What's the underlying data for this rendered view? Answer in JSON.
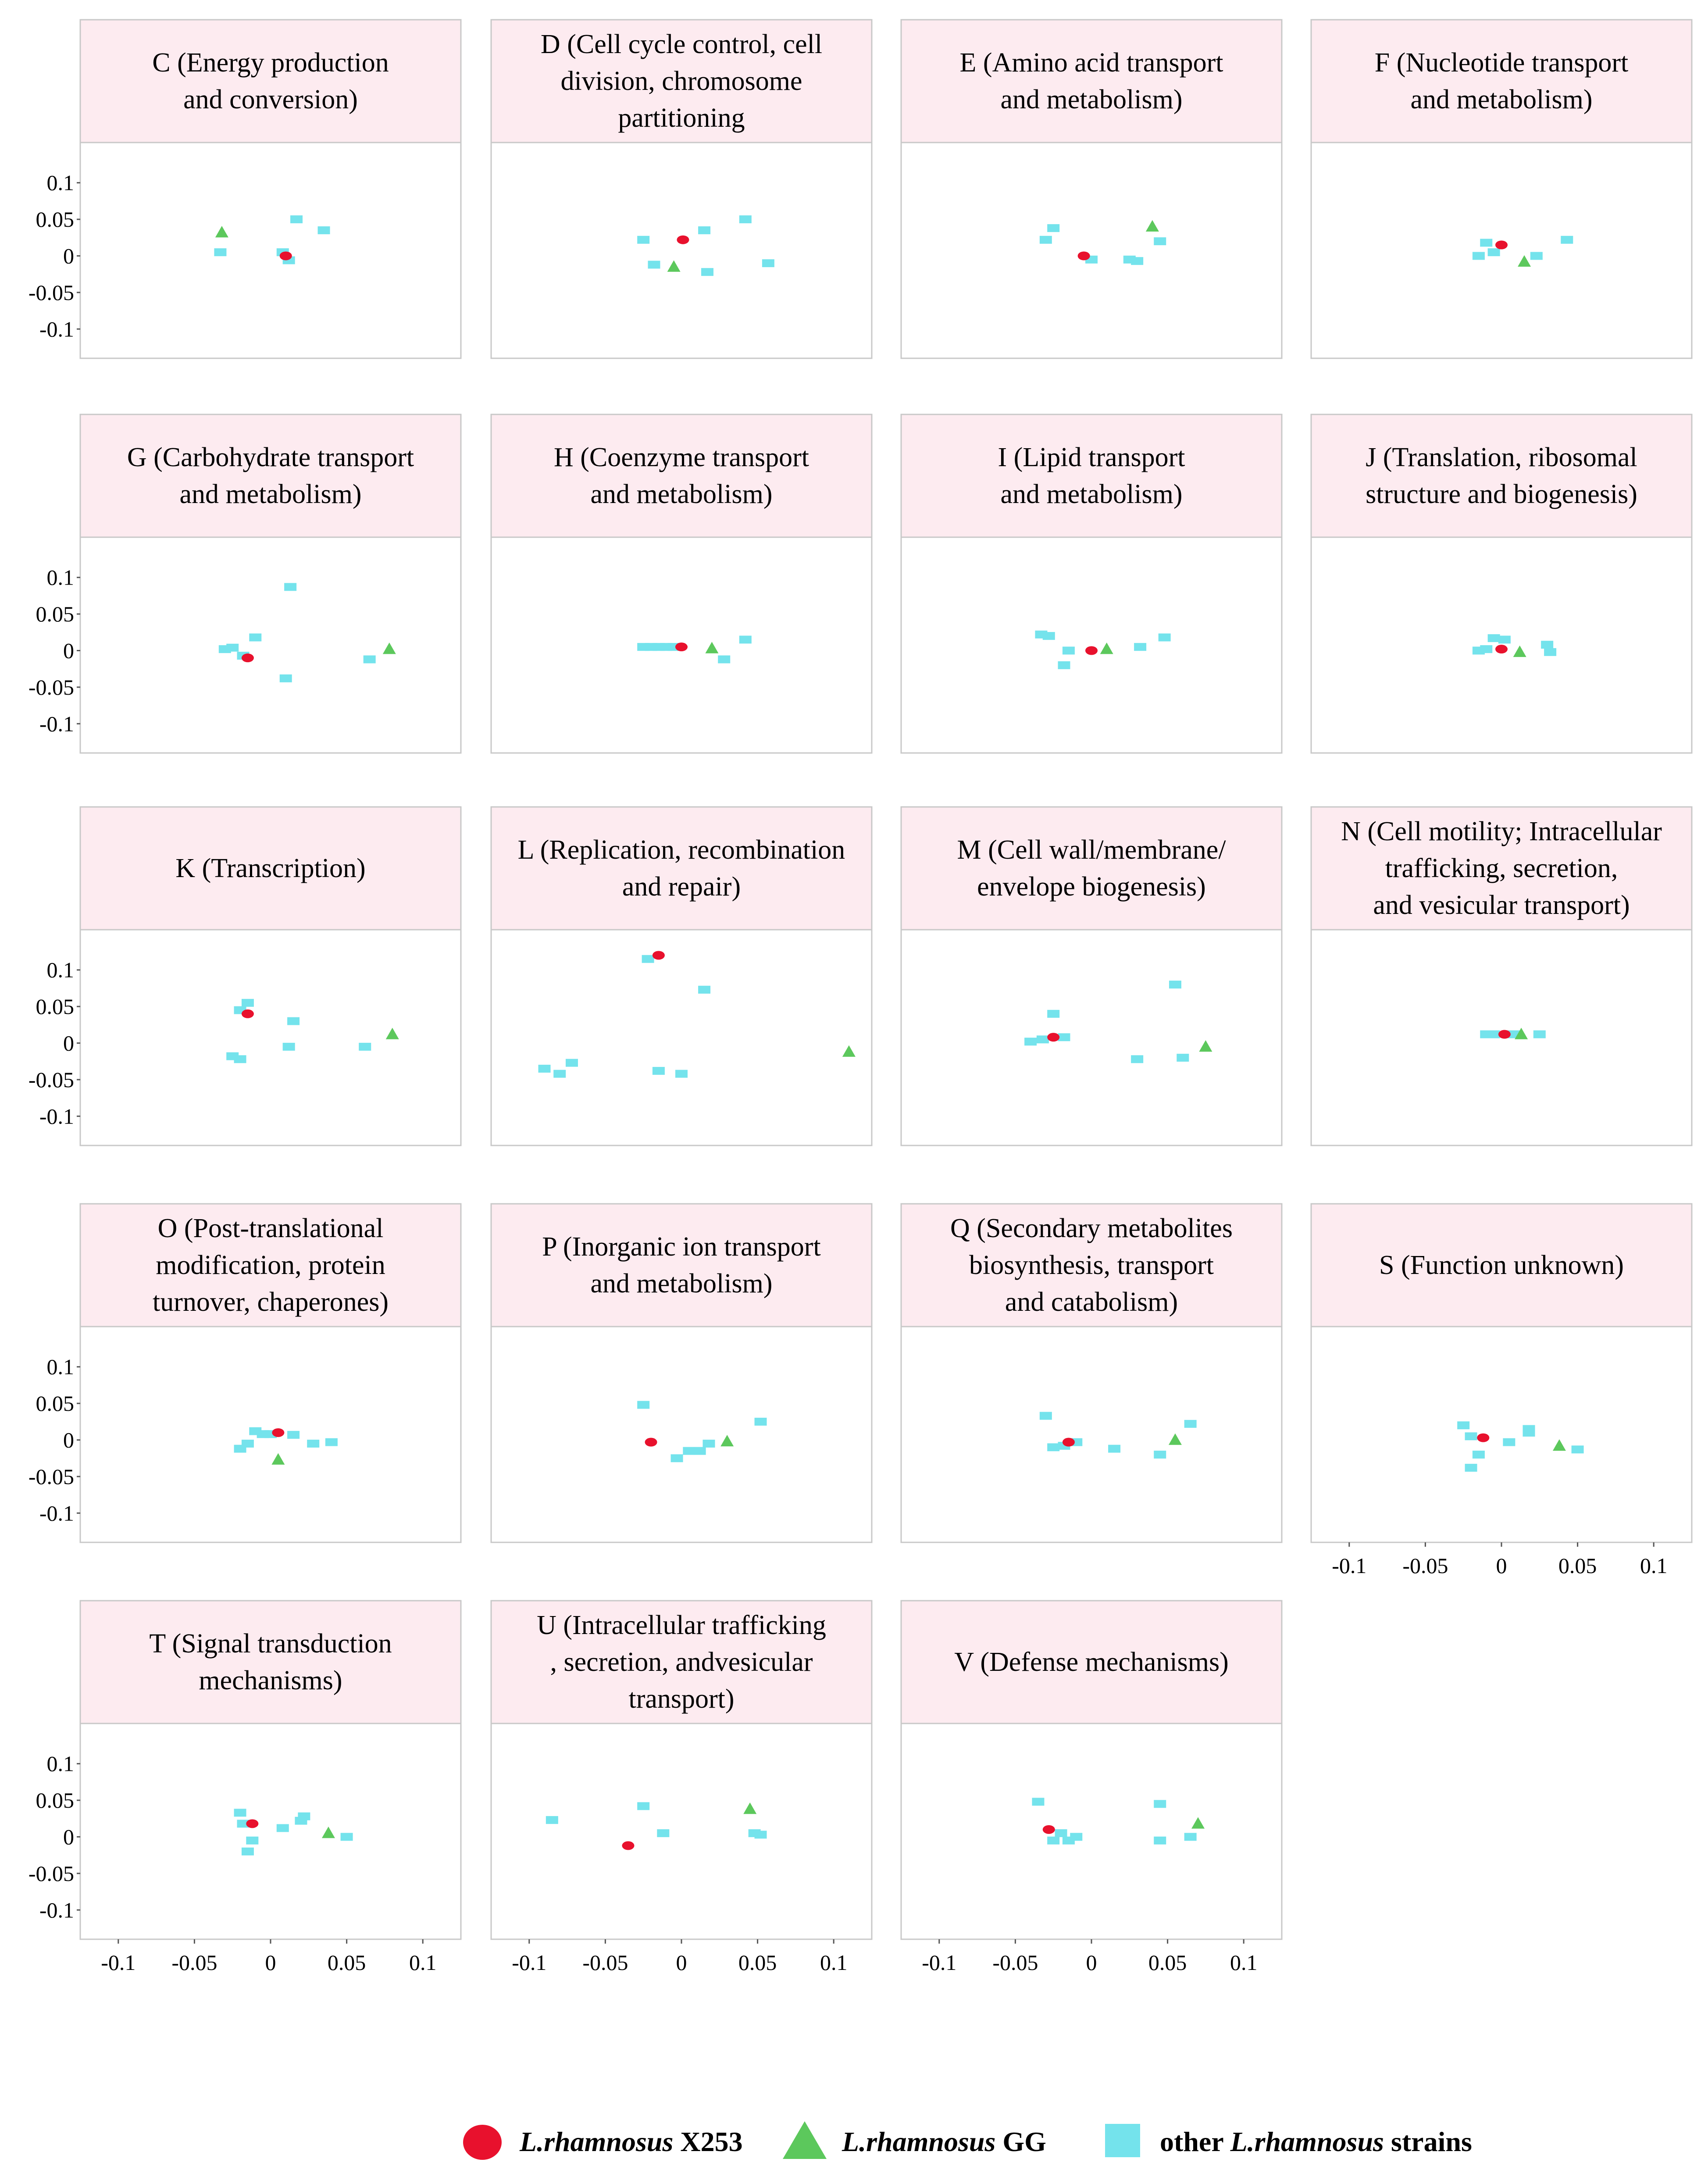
{
  "chart_data": {
    "type": "scatter",
    "title": "",
    "xlabel": "",
    "ylabel": "",
    "xlim": [
      -0.125,
      0.125
    ],
    "ylim": [
      -0.14,
      0.155
    ],
    "x_ticks": [
      "-0.1",
      "-0.05",
      "0",
      "0.05",
      "0.1"
    ],
    "y_ticks": [
      "0.1",
      "0.05",
      "0",
      "-0.05",
      "-0.1"
    ],
    "grid": false,
    "legend_position": "bottom",
    "legend": [
      {
        "key": "x253",
        "marker": "ellipse",
        "color": "#e8112d",
        "italic": "L.rhamnosus",
        "plain": " X253"
      },
      {
        "key": "gg",
        "marker": "triangle",
        "color": "#5cc85c",
        "italic": "L.rhamnosus",
        "plain": " GG"
      },
      {
        "key": "other",
        "marker": "square",
        "color": "#74e3ec",
        "prefix": "other ",
        "italic": "L.rhamnosus",
        "plain": " strains"
      }
    ],
    "panels": [
      {
        "id": "C",
        "title_lines": [
          "C (Energy production",
          "and conversion)"
        ],
        "x253": [
          [
            0.01,
            0.0
          ]
        ],
        "gg": [
          [
            -0.032,
            0.032
          ]
        ],
        "other": [
          [
            -0.033,
            0.005
          ],
          [
            0.008,
            0.005
          ],
          [
            0.017,
            0.05
          ],
          [
            0.035,
            0.035
          ],
          [
            0.012,
            -0.006
          ]
        ]
      },
      {
        "id": "D",
        "title_lines": [
          "D (Cell cycle control, cell",
          "division, chromosome",
          "partitioning"
        ],
        "x253": [
          [
            0.001,
            0.022
          ]
        ],
        "gg": [
          [
            -0.005,
            -0.015
          ]
        ],
        "other": [
          [
            -0.025,
            0.022
          ],
          [
            -0.018,
            -0.012
          ],
          [
            0.015,
            0.035
          ],
          [
            0.017,
            -0.022
          ],
          [
            0.042,
            0.05
          ],
          [
            0.057,
            -0.01
          ]
        ]
      },
      {
        "id": "E",
        "title_lines": [
          "E (Amino acid transport",
          "and metabolism)"
        ],
        "x253": [
          [
            -0.005,
            0.0
          ]
        ],
        "gg": [
          [
            0.04,
            0.04
          ]
        ],
        "other": [
          [
            -0.03,
            0.022
          ],
          [
            -0.025,
            0.038
          ],
          [
            0.0,
            -0.005
          ],
          [
            0.025,
            -0.005
          ],
          [
            0.03,
            -0.007
          ],
          [
            0.045,
            0.02
          ]
        ]
      },
      {
        "id": "F",
        "title_lines": [
          "F (Nucleotide transport",
          "and metabolism)"
        ],
        "x253": [
          [
            0.0,
            0.015
          ]
        ],
        "gg": [
          [
            0.015,
            -0.008
          ]
        ],
        "other": [
          [
            -0.015,
            0.0
          ],
          [
            -0.01,
            0.018
          ],
          [
            -0.005,
            0.005
          ],
          [
            0.023,
            0.0
          ],
          [
            0.043,
            0.022
          ]
        ]
      },
      {
        "id": "G",
        "title_lines": [
          "G (Carbohydrate transport",
          "and metabolism)"
        ],
        "x253": [
          [
            -0.015,
            -0.01
          ]
        ],
        "gg": [
          [
            0.078,
            0.002
          ]
        ],
        "other": [
          [
            -0.03,
            0.002
          ],
          [
            -0.025,
            0.004
          ],
          [
            -0.018,
            -0.007
          ],
          [
            -0.01,
            0.018
          ],
          [
            0.013,
            0.087
          ],
          [
            0.01,
            -0.038
          ],
          [
            0.065,
            -0.012
          ]
        ]
      },
      {
        "id": "H",
        "title_lines": [
          "H (Coenzyme transport",
          "and metabolism)"
        ],
        "x253": [
          [
            0.0,
            0.005
          ]
        ],
        "gg": [
          [
            0.02,
            0.003
          ]
        ],
        "other": [
          [
            -0.025,
            0.005
          ],
          [
            -0.02,
            0.005
          ],
          [
            -0.015,
            0.005
          ],
          [
            -0.01,
            0.005
          ],
          [
            -0.005,
            0.005
          ],
          [
            0.028,
            -0.012
          ],
          [
            0.042,
            0.015
          ]
        ]
      },
      {
        "id": "I",
        "title_lines": [
          "I (Lipid transport",
          "and metabolism)"
        ],
        "x253": [
          [
            0.0,
            0.0
          ]
        ],
        "gg": [
          [
            0.01,
            0.002
          ]
        ],
        "other": [
          [
            -0.033,
            0.022
          ],
          [
            -0.028,
            0.02
          ],
          [
            -0.015,
            0.0
          ],
          [
            -0.018,
            -0.02
          ],
          [
            0.032,
            0.005
          ],
          [
            0.048,
            0.018
          ]
        ]
      },
      {
        "id": "J",
        "title_lines": [
          "J (Translation, ribosomal",
          "structure and biogenesis)"
        ],
        "x253": [
          [
            0.0,
            0.002
          ]
        ],
        "gg": [
          [
            0.012,
            -0.002
          ]
        ],
        "other": [
          [
            -0.015,
            0.0
          ],
          [
            -0.01,
            0.002
          ],
          [
            -0.005,
            0.017
          ],
          [
            0.002,
            0.015
          ],
          [
            0.03,
            0.008
          ],
          [
            0.032,
            -0.002
          ]
        ]
      },
      {
        "id": "K",
        "title_lines": [
          "K (Transcription)"
        ],
        "x253": [
          [
            -0.015,
            0.04
          ]
        ],
        "gg": [
          [
            0.08,
            0.012
          ]
        ],
        "other": [
          [
            -0.02,
            0.045
          ],
          [
            -0.015,
            0.055
          ],
          [
            -0.025,
            -0.018
          ],
          [
            -0.02,
            -0.022
          ],
          [
            0.015,
            0.03
          ],
          [
            0.012,
            -0.005
          ],
          [
            0.062,
            -0.005
          ]
        ]
      },
      {
        "id": "L",
        "title_lines": [
          "L (Replication, recombination",
          "and repair)"
        ],
        "x253": [
          [
            -0.015,
            0.12
          ]
        ],
        "gg": [
          [
            0.11,
            -0.012
          ]
        ],
        "other": [
          [
            -0.022,
            0.115
          ],
          [
            0.015,
            0.073
          ],
          [
            -0.09,
            -0.035
          ],
          [
            -0.08,
            -0.042
          ],
          [
            -0.072,
            -0.027
          ],
          [
            -0.015,
            -0.038
          ],
          [
            0.0,
            -0.042
          ]
        ]
      },
      {
        "id": "M",
        "title_lines": [
          "M (Cell wall/membrane/",
          "envelope biogenesis)"
        ],
        "x253": [
          [
            -0.025,
            0.008
          ]
        ],
        "gg": [
          [
            0.075,
            -0.005
          ]
        ],
        "other": [
          [
            -0.04,
            0.002
          ],
          [
            -0.032,
            0.005
          ],
          [
            -0.025,
            0.04
          ],
          [
            -0.018,
            0.008
          ],
          [
            0.055,
            0.08
          ],
          [
            0.03,
            -0.022
          ],
          [
            0.06,
            -0.02
          ]
        ]
      },
      {
        "id": "N",
        "title_lines": [
          "N (Cell motility; Intracellular",
          "trafficking, secretion,",
          "and vesicular transport)"
        ],
        "x253": [
          [
            0.002,
            0.012
          ]
        ],
        "gg": [
          [
            0.013,
            0.012
          ]
        ],
        "other": [
          [
            -0.01,
            0.012
          ],
          [
            -0.005,
            0.012
          ],
          [
            0.008,
            0.012
          ],
          [
            0.025,
            0.012
          ]
        ]
      },
      {
        "id": "O",
        "title_lines": [
          "O (Post-translational",
          "modification, protein",
          "turnover, chaperones)"
        ],
        "x253": [
          [
            0.005,
            0.01
          ]
        ],
        "gg": [
          [
            0.005,
            -0.027
          ]
        ],
        "other": [
          [
            -0.02,
            -0.012
          ],
          [
            -0.015,
            -0.005
          ],
          [
            -0.01,
            0.012
          ],
          [
            -0.005,
            0.008
          ],
          [
            0.0,
            0.008
          ],
          [
            0.015,
            0.007
          ],
          [
            0.028,
            -0.005
          ],
          [
            0.04,
            -0.003
          ]
        ]
      },
      {
        "id": "P",
        "title_lines": [
          "P (Inorganic ion transport",
          "and metabolism)"
        ],
        "x253": [
          [
            -0.02,
            -0.003
          ]
        ],
        "gg": [
          [
            0.03,
            -0.002
          ]
        ],
        "other": [
          [
            -0.025,
            0.048
          ],
          [
            -0.003,
            -0.025
          ],
          [
            0.005,
            -0.015
          ],
          [
            0.012,
            -0.015
          ],
          [
            0.018,
            -0.005
          ],
          [
            0.052,
            0.025
          ]
        ]
      },
      {
        "id": "Q",
        "title_lines": [
          "Q (Secondary metabolites",
          "biosynthesis, transport",
          "and catabolism)"
        ],
        "x253": [
          [
            -0.015,
            -0.003
          ]
        ],
        "gg": [
          [
            0.055,
            0.0
          ]
        ],
        "other": [
          [
            -0.03,
            0.033
          ],
          [
            -0.025,
            -0.01
          ],
          [
            -0.018,
            -0.008
          ],
          [
            -0.01,
            -0.003
          ],
          [
            0.015,
            -0.012
          ],
          [
            0.045,
            -0.02
          ],
          [
            0.065,
            0.022
          ]
        ]
      },
      {
        "id": "S",
        "title_lines": [
          "S (Function unknown)"
        ],
        "x253": [
          [
            -0.012,
            0.003
          ]
        ],
        "gg": [
          [
            0.038,
            -0.008
          ]
        ],
        "other": [
          [
            -0.025,
            0.02
          ],
          [
            -0.02,
            0.005
          ],
          [
            -0.015,
            -0.02
          ],
          [
            -0.02,
            -0.038
          ],
          [
            0.005,
            -0.003
          ],
          [
            0.018,
            0.01
          ],
          [
            0.018,
            0.015
          ],
          [
            0.05,
            -0.013
          ]
        ]
      },
      {
        "id": "T",
        "title_lines": [
          "T (Signal transduction",
          "mechanisms)"
        ],
        "x253": [
          [
            -0.012,
            0.018
          ]
        ],
        "gg": [
          [
            0.038,
            0.005
          ]
        ],
        "other": [
          [
            -0.02,
            0.033
          ],
          [
            -0.018,
            0.018
          ],
          [
            -0.015,
            -0.02
          ],
          [
            -0.012,
            -0.005
          ],
          [
            0.008,
            0.012
          ],
          [
            0.02,
            0.022
          ],
          [
            0.022,
            0.028
          ],
          [
            0.05,
            0.0
          ]
        ]
      },
      {
        "id": "U",
        "title_lines": [
          "U (Intracellular trafficking",
          ", secretion, andvesicular",
          "transport)"
        ],
        "x253": [
          [
            -0.035,
            -0.012
          ]
        ],
        "gg": [
          [
            0.045,
            0.038
          ]
        ],
        "other": [
          [
            -0.085,
            0.023
          ],
          [
            -0.025,
            0.042
          ],
          [
            -0.012,
            0.005
          ],
          [
            0.048,
            0.005
          ],
          [
            0.052,
            0.003
          ]
        ]
      },
      {
        "id": "V",
        "title_lines": [
          "V (Defense mechanisms)"
        ],
        "x253": [
          [
            -0.028,
            0.01
          ]
        ],
        "gg": [
          [
            0.07,
            0.018
          ]
        ],
        "other": [
          [
            -0.035,
            0.048
          ],
          [
            -0.025,
            -0.005
          ],
          [
            -0.02,
            0.005
          ],
          [
            -0.015,
            -0.005
          ],
          [
            -0.01,
            0.0
          ],
          [
            0.045,
            0.045
          ],
          [
            0.045,
            -0.005
          ],
          [
            0.065,
            0.0
          ]
        ]
      }
    ]
  }
}
